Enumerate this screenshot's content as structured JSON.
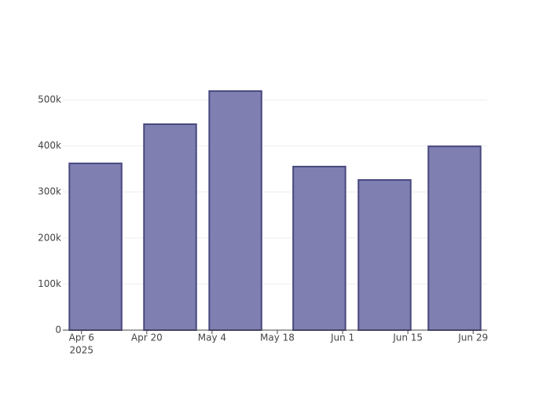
{
  "chart_data": {
    "type": "bar",
    "x": [
      "2025-04-09",
      "2025-04-25",
      "2025-05-09",
      "2025-05-27",
      "2025-06-10",
      "2025-06-25"
    ],
    "values": [
      362000,
      447000,
      519000,
      355000,
      326000,
      399000
    ],
    "color": "#7f7fb1",
    "edge_color": "#48487f",
    "xlim": [
      "2025-04-02",
      "2025-07-02"
    ],
    "xticks": [
      {
        "value": "2025-04-06",
        "label": "Apr 6",
        "sublabel": "2025"
      },
      {
        "value": "2025-04-20",
        "label": "Apr 20"
      },
      {
        "value": "2025-05-04",
        "label": "May 4"
      },
      {
        "value": "2025-05-18",
        "label": "May 18"
      },
      {
        "value": "2025-06-01",
        "label": "Jun 1"
      },
      {
        "value": "2025-06-15",
        "label": "Jun 15"
      },
      {
        "value": "2025-06-29",
        "label": "Jun 29"
      }
    ],
    "ylim": [
      0,
      546000
    ],
    "yticks": [
      0,
      {
        "value": 100000,
        "label": "100k"
      },
      {
        "value": 200000,
        "label": "200k"
      },
      {
        "value": 300000,
        "label": "300k"
      },
      {
        "value": 400000,
        "label": "400k"
      },
      {
        "value": 500000,
        "label": "500k"
      }
    ],
    "grid": true
  }
}
